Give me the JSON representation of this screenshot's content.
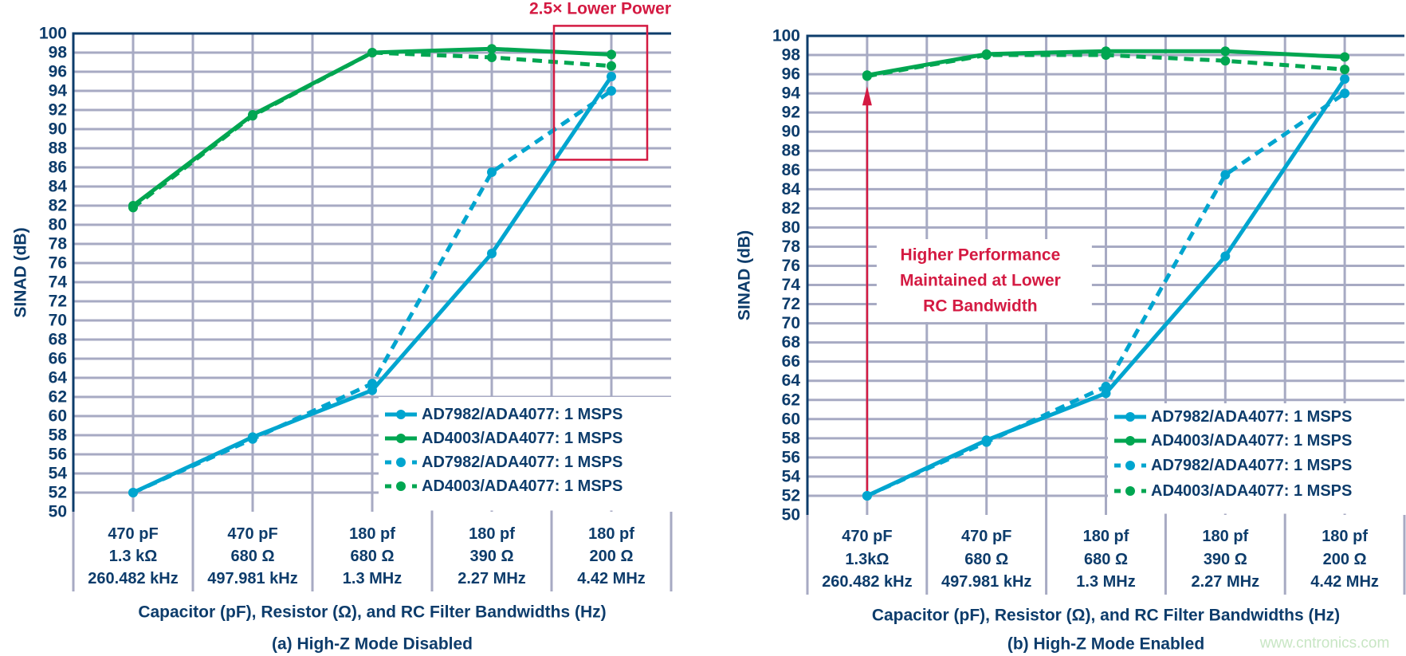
{
  "colors": {
    "blue": "#00a5cf",
    "green": "#00a651",
    "axis_text": "#0d3c6b",
    "grid": "#a7aac3",
    "annotation": "#d41a42"
  },
  "watermark": "www.cntronics.com",
  "chart_data": [
    {
      "type": "line",
      "caption": "(a) High-Z Mode Disabled",
      "xlabel": "Capacitor (pF), Resistor (Ω), and RC Filter Bandwidths (Hz)",
      "ylabel": "SINAD (dB)",
      "ylim": [
        50,
        100
      ],
      "yticks": [
        50,
        52,
        54,
        56,
        58,
        60,
        62,
        64,
        66,
        68,
        70,
        72,
        74,
        76,
        78,
        80,
        82,
        84,
        86,
        88,
        90,
        92,
        94,
        96,
        98,
        100
      ],
      "grid": true,
      "legend_placement": "bottom-right",
      "categories": [
        [
          "470 pF",
          "1.3 kΩ",
          "260.482 kHz"
        ],
        [
          "470 pF",
          "680 Ω",
          "497.981 kHz"
        ],
        [
          "180 pf",
          "680 Ω",
          "1.3 MHz"
        ],
        [
          "180 pf",
          "390 Ω",
          "2.27 MHz"
        ],
        [
          "180 pf",
          "200 Ω",
          "4.42 MHz"
        ]
      ],
      "series": [
        {
          "name": "AD7982/ADA4077: 1 MSPS",
          "color": "blue",
          "style": "solid",
          "values": [
            52.0,
            57.8,
            62.7,
            77.0,
            95.5
          ]
        },
        {
          "name": "AD4003/ADA4077: 1 MSPS",
          "color": "green",
          "style": "solid",
          "values": [
            82.0,
            91.5,
            98.0,
            98.4,
            97.8
          ]
        },
        {
          "name": "AD7982/ADA4077: 1 MSPS",
          "color": "blue",
          "style": "dashed",
          "values": [
            52.0,
            57.6,
            63.4,
            85.5,
            94.0
          ]
        },
        {
          "name": "AD4003/ADA4077: 1 MSPS",
          "color": "green",
          "style": "dashed",
          "values": [
            81.8,
            91.4,
            98.0,
            97.5,
            96.6
          ]
        }
      ],
      "annotation": {
        "text": [
          "2.5× Lower Power"
        ],
        "type": "highlight-box",
        "category_index": 4,
        "y_range": [
          86.8,
          100.8
        ]
      }
    },
    {
      "type": "line",
      "caption": "(b) High-Z Mode Enabled",
      "xlabel": "Capacitor (pF), Resistor (Ω), and RC Filter Bandwidths (Hz)",
      "ylabel": "SINAD (dB)",
      "ylim": [
        50,
        100
      ],
      "yticks": [
        50,
        52,
        54,
        56,
        58,
        60,
        62,
        64,
        66,
        68,
        70,
        72,
        74,
        76,
        78,
        80,
        82,
        84,
        86,
        88,
        90,
        92,
        94,
        96,
        98,
        100
      ],
      "grid": true,
      "legend_placement": "bottom-right",
      "categories": [
        [
          "470 pF",
          "1.3kΩ",
          "260.482 kHz"
        ],
        [
          "470 pF",
          "680 Ω",
          "497.981 kHz"
        ],
        [
          "180 pf",
          "680 Ω",
          "1.3 MHz"
        ],
        [
          "180 pf",
          "390 Ω",
          "2.27 MHz"
        ],
        [
          "180 pf",
          "200 Ω",
          "4.42 MHz"
        ]
      ],
      "series": [
        {
          "name": "AD7982/ADA4077: 1 MSPS",
          "color": "blue",
          "style": "solid",
          "values": [
            52.0,
            57.8,
            62.7,
            77.0,
            95.5
          ]
        },
        {
          "name": "AD4003/ADA4077: 1 MSPS",
          "color": "green",
          "style": "solid",
          "values": [
            95.9,
            98.1,
            98.4,
            98.4,
            97.8
          ]
        },
        {
          "name": "AD7982/ADA4077: 1 MSPS",
          "color": "blue",
          "style": "dashed",
          "values": [
            52.0,
            57.6,
            63.4,
            85.5,
            94.0
          ]
        },
        {
          "name": "AD4003/ADA4077: 1 MSPS",
          "color": "green",
          "style": "dashed",
          "values": [
            95.8,
            98.0,
            98.0,
            97.4,
            96.5
          ]
        }
      ],
      "annotation": {
        "text": [
          "Higher Performance",
          "Maintained at Lower",
          "RC Bandwidth"
        ],
        "type": "arrow",
        "category_index": 0,
        "from": 52.0,
        "to": 95.9
      }
    }
  ]
}
